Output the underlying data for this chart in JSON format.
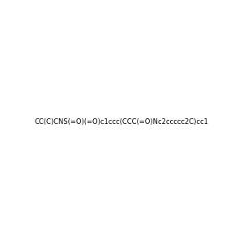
{
  "smiles": "CC(C)CNS(=O)(=O)c1ccc(CCC(=O)Nc2ccccc2C)cc1",
  "image_size": 300,
  "background_color": "#f0f0f0"
}
